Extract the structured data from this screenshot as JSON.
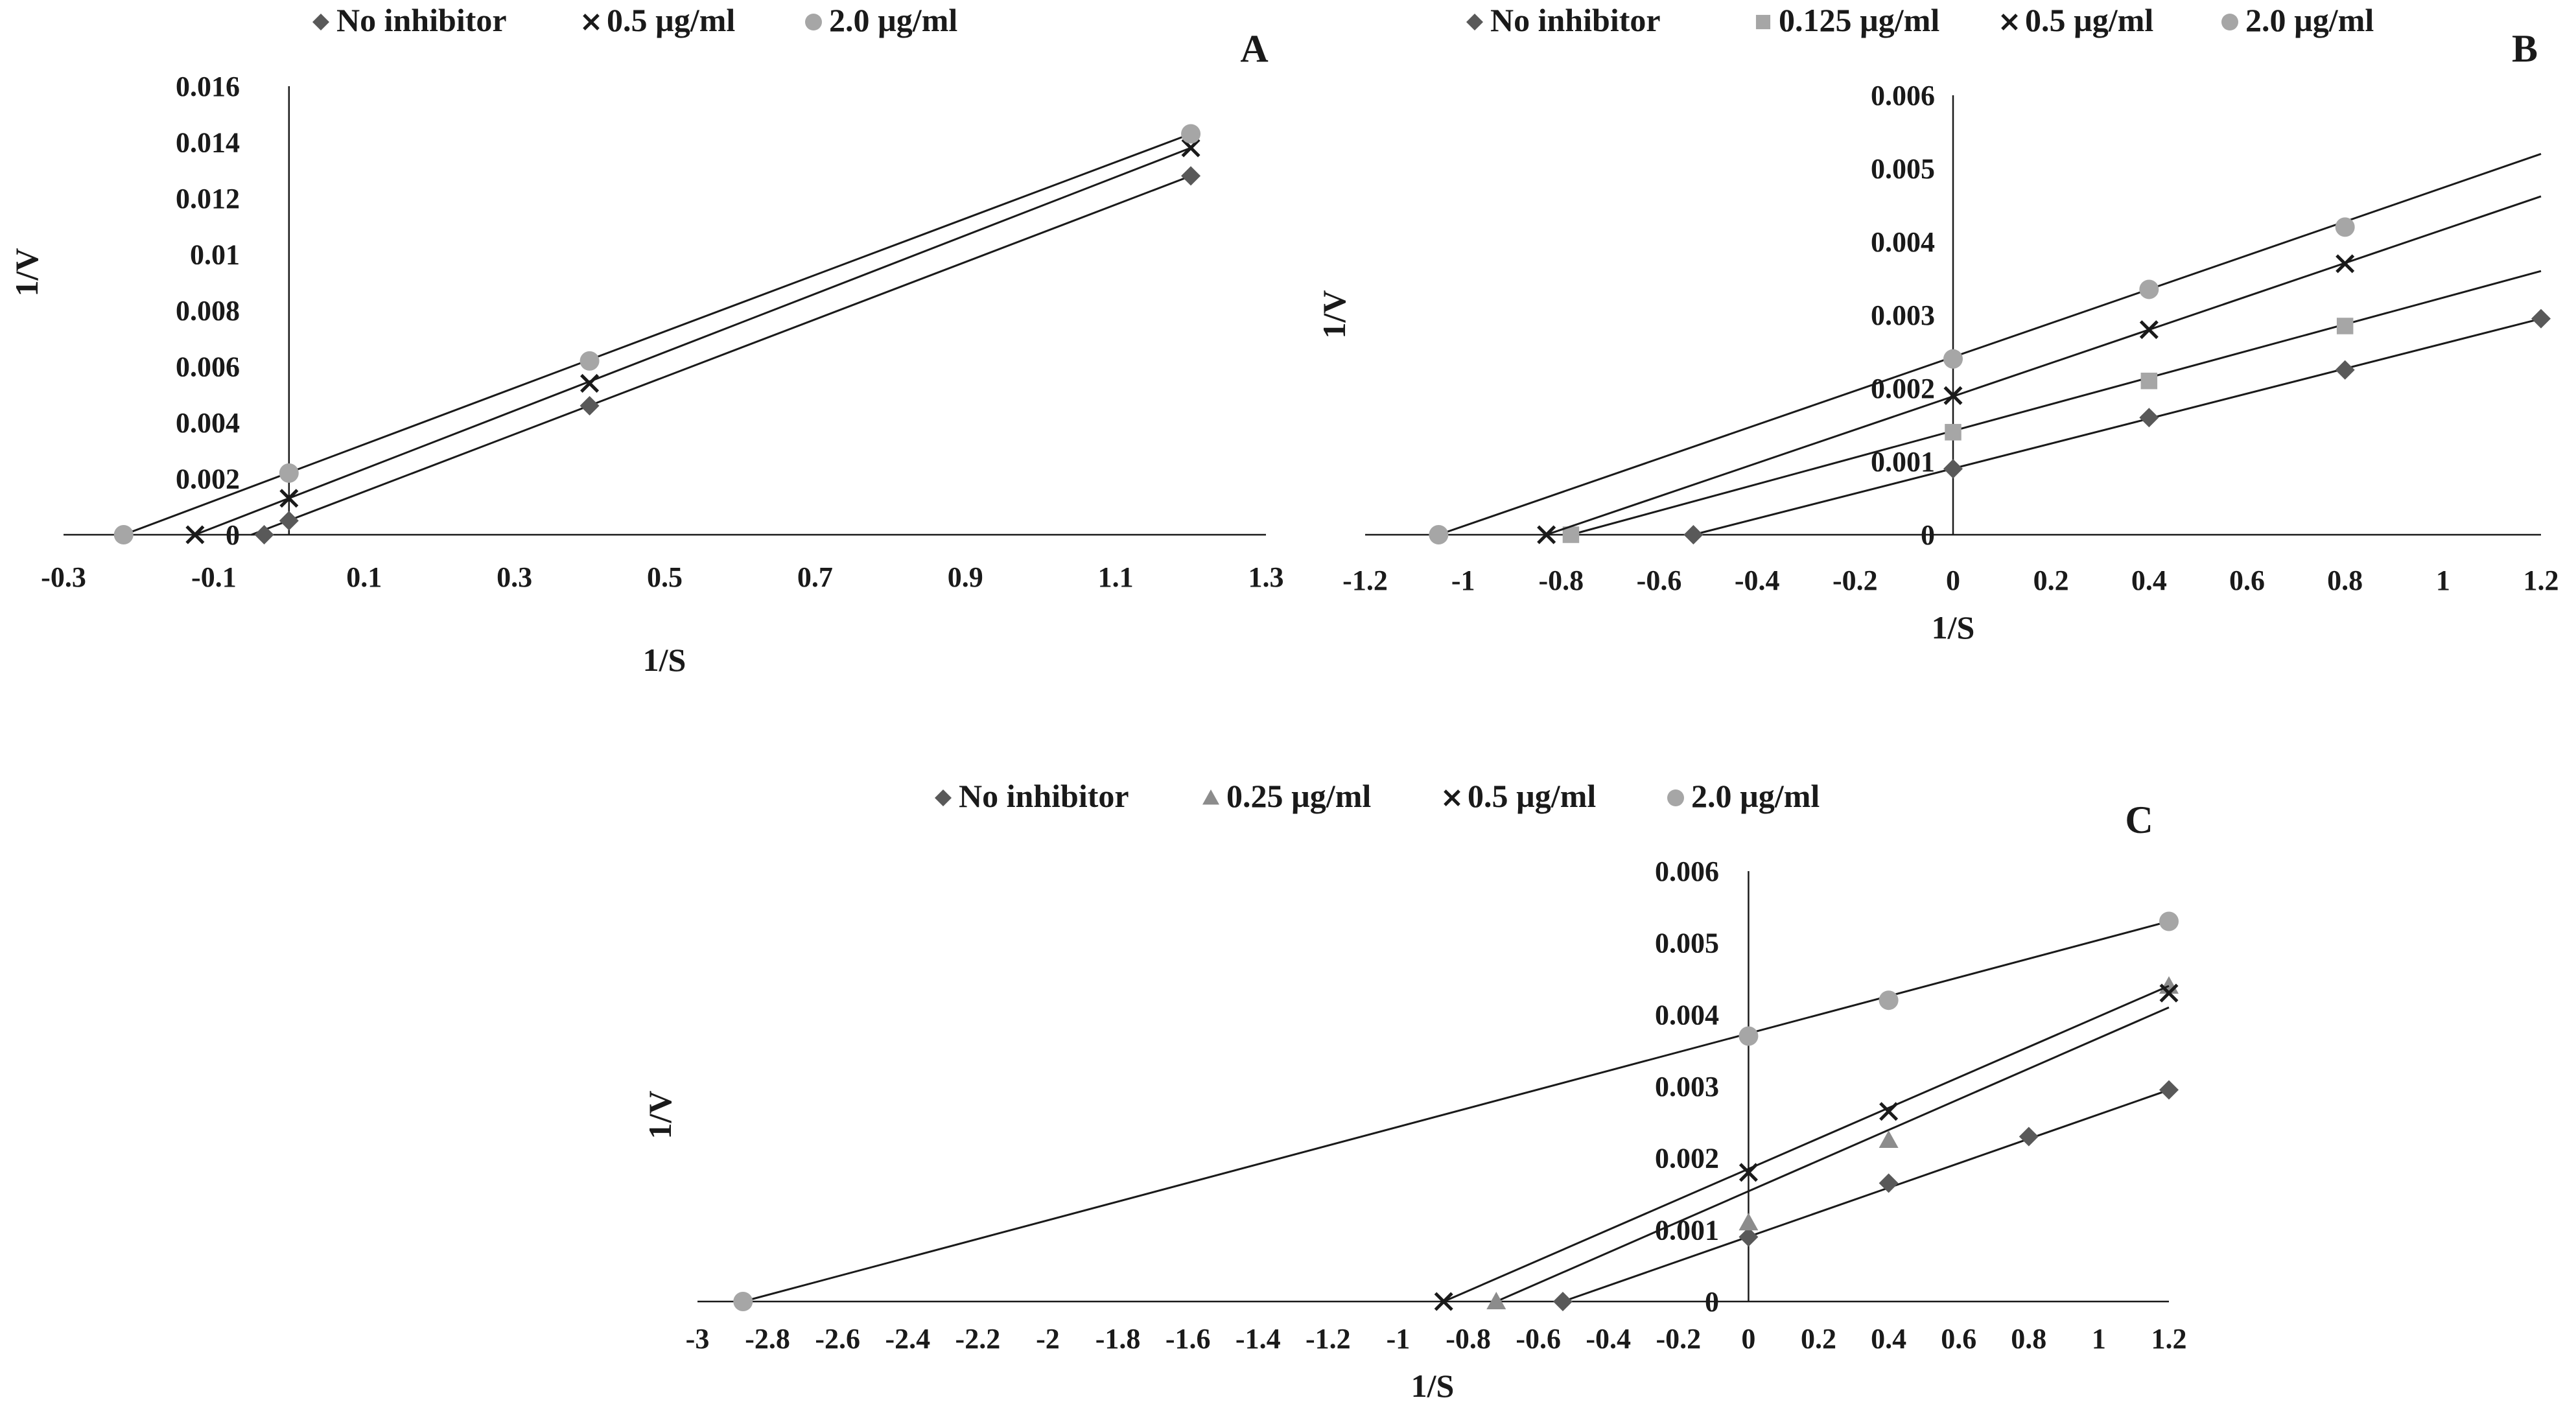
{
  "chart_data": [
    {
      "panel_label": "A",
      "type": "scatter",
      "xlabel": "1/S",
      "ylabel": "1/V",
      "xlim": [
        -0.3,
        1.3
      ],
      "ylim": [
        0,
        0.016
      ],
      "x_ticks": [
        "-0.3",
        "-0.1",
        "0.1",
        "0.3",
        "0.5",
        "0.7",
        "0.9",
        "1.1",
        "1.3"
      ],
      "y_ticks": [
        "0",
        "0.002",
        "0.004",
        "0.006",
        "0.008",
        "0.01",
        "0.012",
        "0.014",
        "0.016"
      ],
      "legend_position": "top",
      "grid": false,
      "series": [
        {
          "name": "No inhibitor",
          "marker": "diamond",
          "color": "#595959",
          "x": [
            -0.033,
            0,
            0.4,
            1.2
          ],
          "y": [
            0,
            0.0005,
            0.0046,
            0.0128
          ],
          "trendline": [
            [
              -0.05,
              0
            ],
            [
              1.2,
              0.0128
            ]
          ]
        },
        {
          "name": "0.5 µg/ml",
          "marker": "x",
          "color": "#1a1a1a",
          "x": [
            -0.125,
            0,
            0.4,
            1.2
          ],
          "y": [
            0,
            0.0013,
            0.0054,
            0.0138
          ],
          "trendline": [
            [
              -0.125,
              0
            ],
            [
              1.2,
              0.0138
            ]
          ]
        },
        {
          "name": "2.0 µg/ml",
          "marker": "circle",
          "color": "#a6a6a6",
          "x": [
            -0.22,
            0,
            0.4,
            1.2
          ],
          "y": [
            0,
            0.0022,
            0.0062,
            0.0143
          ],
          "trendline": [
            [
              -0.22,
              0
            ],
            [
              1.2,
              0.0143
            ]
          ]
        }
      ]
    },
    {
      "panel_label": "B",
      "type": "scatter",
      "xlabel": "1/S",
      "ylabel": "1/V",
      "xlim": [
        -1.2,
        1.2
      ],
      "ylim": [
        0,
        0.006
      ],
      "x_ticks": [
        "-1.2",
        "-1",
        "-0.8",
        "-0.6",
        "-0.4",
        "-0.2",
        "0",
        "0.2",
        "0.4",
        "0.6",
        "0.8",
        "1",
        "1.2"
      ],
      "y_ticks": [
        "0",
        "0.001",
        "0.002",
        "0.003",
        "0.004",
        "0.005",
        "0.006"
      ],
      "legend_position": "top",
      "grid": false,
      "series": [
        {
          "name": "No inhibitor",
          "marker": "diamond",
          "color": "#595959",
          "x": [
            -0.53,
            0,
            0.4,
            0.8,
            1.2
          ],
          "y": [
            0,
            0.0009,
            0.0016,
            0.00225,
            0.00295
          ],
          "trendline": [
            [
              -0.53,
              0
            ],
            [
              1.2,
              0.00295
            ]
          ]
        },
        {
          "name": "0.125 µg/ml",
          "marker": "square",
          "color": "#a6a6a6",
          "x": [
            -0.78,
            0,
            0.4,
            0.8
          ],
          "y": [
            0,
            0.0014,
            0.0021,
            0.00285
          ],
          "trendline": [
            [
              -0.78,
              0
            ],
            [
              1.2,
              0.0036
            ]
          ]
        },
        {
          "name": "0.5 µg/ml",
          "marker": "x",
          "color": "#1a1a1a",
          "x": [
            -0.83,
            0,
            0.4,
            0.8
          ],
          "y": [
            0,
            0.0019,
            0.0028,
            0.0037
          ],
          "trendline": [
            [
              -0.83,
              0
            ],
            [
              1.2,
              0.00462
            ]
          ]
        },
        {
          "name": "2.0 µg/ml",
          "marker": "circle",
          "color": "#a6a6a6",
          "x": [
            -1.05,
            0,
            0.4,
            0.8
          ],
          "y": [
            0,
            0.0024,
            0.00335,
            0.0042
          ],
          "trendline": [
            [
              -1.05,
              0
            ],
            [
              1.2,
              0.0052
            ]
          ]
        }
      ]
    },
    {
      "panel_label": "C",
      "type": "scatter",
      "xlabel": "1/S",
      "ylabel": "1/V",
      "xlim": [
        -3,
        1.2
      ],
      "ylim": [
        0,
        0.006
      ],
      "x_ticks": [
        "-3",
        "-2.8",
        "-2.6",
        "-2.4",
        "-2.2",
        "-2",
        "-1.8",
        "-1.6",
        "-1.4",
        "-1.2",
        "-1",
        "-0.8",
        "-0.6",
        "-0.4",
        "-0.2",
        "0",
        "0.2",
        "0.4",
        "0.6",
        "0.8",
        "1",
        "1.2"
      ],
      "y_ticks": [
        "0",
        "0.001",
        "0.002",
        "0.003",
        "0.004",
        "0.005",
        "0.006"
      ],
      "legend_position": "top",
      "grid": false,
      "series": [
        {
          "name": "No inhibitor",
          "marker": "diamond",
          "color": "#595959",
          "x": [
            -0.53,
            0,
            0.4,
            0.8,
            1.2
          ],
          "y": [
            0,
            0.0009,
            0.00165,
            0.0023,
            0.00295
          ],
          "trendline": [
            [
              -0.53,
              0
            ],
            [
              1.2,
              0.00295
            ]
          ]
        },
        {
          "name": "0.25 µg/ml",
          "marker": "triangle",
          "color": "#8c8c8c",
          "x": [
            -0.72,
            0,
            0.4,
            1.2
          ],
          "y": [
            0,
            0.0011,
            0.00225,
            0.0044
          ],
          "trendline": [
            [
              -0.72,
              0
            ],
            [
              1.2,
              0.0041
            ]
          ]
        },
        {
          "name": "0.5 µg/ml",
          "marker": "x",
          "color": "#1a1a1a",
          "x": [
            -0.87,
            0,
            0.4,
            1.2
          ],
          "y": [
            0,
            0.0018,
            0.00265,
            0.0043
          ],
          "trendline": [
            [
              -0.87,
              0
            ],
            [
              1.2,
              0.0044
            ]
          ]
        },
        {
          "name": "2.0 µg/ml",
          "marker": "circle",
          "color": "#a6a6a6",
          "x": [
            -2.87,
            0,
            0.4,
            1.2
          ],
          "y": [
            0,
            0.0037,
            0.0042,
            0.0053
          ],
          "trendline": [
            [
              -2.87,
              0
            ],
            [
              1.2,
              0.0053
            ]
          ]
        }
      ]
    }
  ]
}
